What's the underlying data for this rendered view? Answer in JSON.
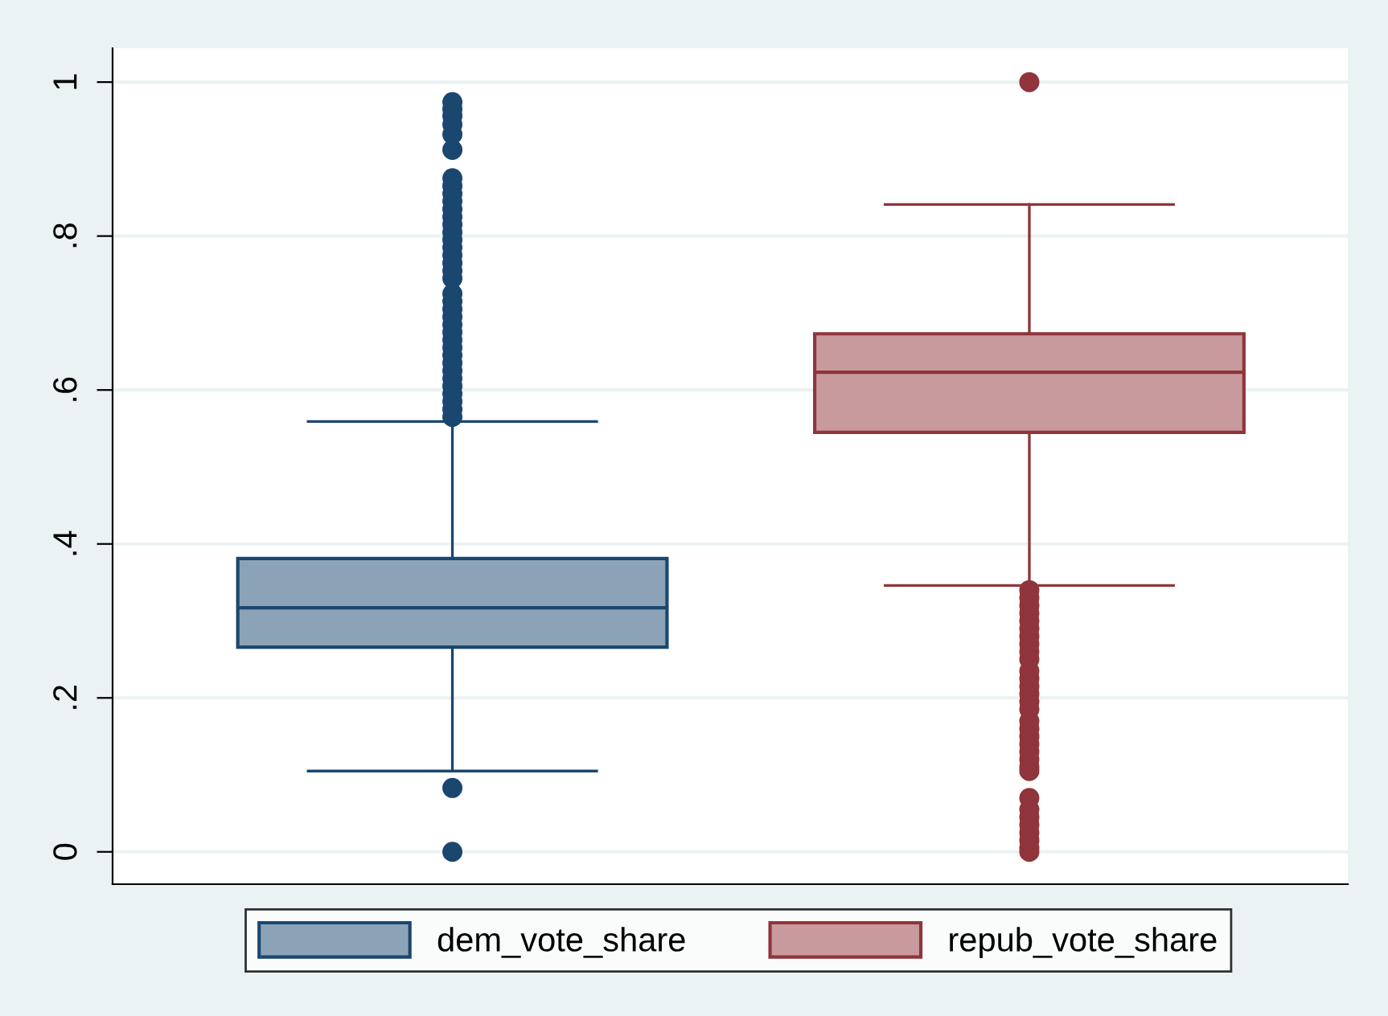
{
  "chart_data": {
    "type": "box",
    "categories": [
      null
    ],
    "series": [
      {
        "name": "dem_vote_share",
        "color": "#1a476f",
        "boxes": [
          {
            "low": 0.105,
            "q1": 0.266,
            "median": 0.317,
            "q3": 0.381,
            "high": 0.559,
            "outliers": [
              0,
              0.083,
              0.565,
              0.575,
              0.585,
              0.595,
              0.605,
              0.615,
              0.625,
              0.635,
              0.645,
              0.655,
              0.665,
              0.675,
              0.685,
              0.695,
              0.705,
              0.715,
              0.725,
              0.745,
              0.755,
              0.765,
              0.775,
              0.785,
              0.795,
              0.805,
              0.815,
              0.825,
              0.835,
              0.845,
              0.855,
              0.865,
              0.875,
              0.912,
              0.932,
              0.945,
              0.956,
              0.965,
              0.974
            ]
          }
        ]
      },
      {
        "name": "repub_vote_share",
        "color": "#90353b",
        "boxes": [
          {
            "low": 0.346,
            "q1": 0.545,
            "median": 0.623,
            "q3": 0.673,
            "high": 0.841,
            "outliers": [
              0,
              0.005,
              0.015,
              0.025,
              0.035,
              0.045,
              0.055,
              0.07,
              0.105,
              0.11,
              0.12,
              0.13,
              0.14,
              0.15,
              0.16,
              0.17,
              0.185,
              0.195,
              0.205,
              0.215,
              0.225,
              0.235,
              0.25,
              0.26,
              0.27,
              0.28,
              0.29,
              0.3,
              0.31,
              0.32,
              0.33,
              0.34,
              1.0
            ]
          }
        ]
      }
    ],
    "ylim": [
      -0.042,
      1.044
    ],
    "yticks": [
      0,
      {
        "value": 0.2,
        "label": ".2"
      },
      {
        "value": 0.4,
        "label": ".4"
      },
      {
        "value": 0.6,
        "label": ".6"
      },
      {
        "value": 0.8,
        "label": ".8"
      },
      1
    ],
    "grid": "y",
    "legend": "bottom"
  }
}
